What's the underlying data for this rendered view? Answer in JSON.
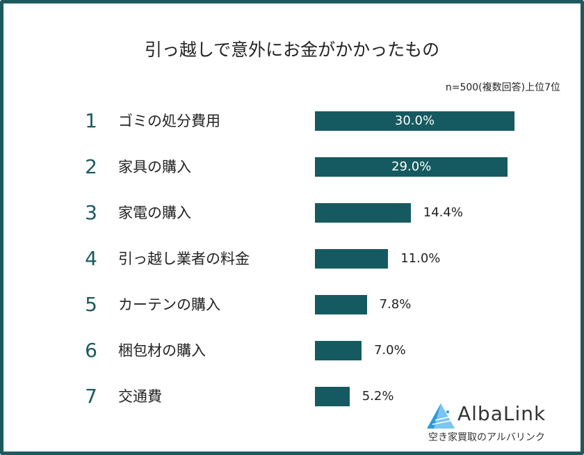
{
  "chart_data": {
    "type": "bar",
    "orientation": "horizontal",
    "title": "引っ越しで意外にお金がかかったもの",
    "note": "n=500(複数回答)上位7位",
    "ranks": [
      "1",
      "2",
      "3",
      "4",
      "5",
      "6",
      "7"
    ],
    "categories": [
      "ゴミの処分費用",
      "家具の購入",
      "家電の購入",
      "引っ越し業者の料金",
      "カーテンの購入",
      "梱包材の購入",
      "交通費"
    ],
    "values": [
      30.0,
      29.0,
      14.4,
      11.0,
      7.8,
      7.0,
      5.2
    ],
    "value_labels": [
      "30.0%",
      "29.0%",
      "14.4%",
      "11.0%",
      "7.8%",
      "7.0%",
      "5.2%"
    ],
    "unit": "%",
    "bar_color": "#155a60",
    "grid": false
  },
  "brand": {
    "name": "AlbaLink",
    "tagline": "空き家買取のアルバリンク",
    "colors": [
      "#1b8fd6",
      "#1b5a5f"
    ]
  }
}
